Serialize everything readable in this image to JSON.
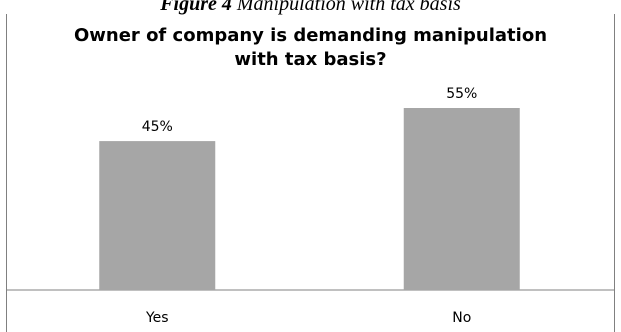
{
  "caption": {
    "figure_number": "Figure 4",
    "text": "Manipulation with tax basis"
  },
  "chart_data": {
    "type": "bar",
    "title_lines": [
      "Owner of company is demanding manipulation",
      "with tax basis?"
    ],
    "categories": [
      "Yes",
      "No"
    ],
    "values": [
      45,
      55
    ],
    "value_labels": [
      "45%",
      "55%"
    ],
    "ylim": [
      0,
      60
    ],
    "grid": false,
    "legend": "none",
    "bar_color": "#a6a6a6",
    "axis_color": "#808080"
  }
}
